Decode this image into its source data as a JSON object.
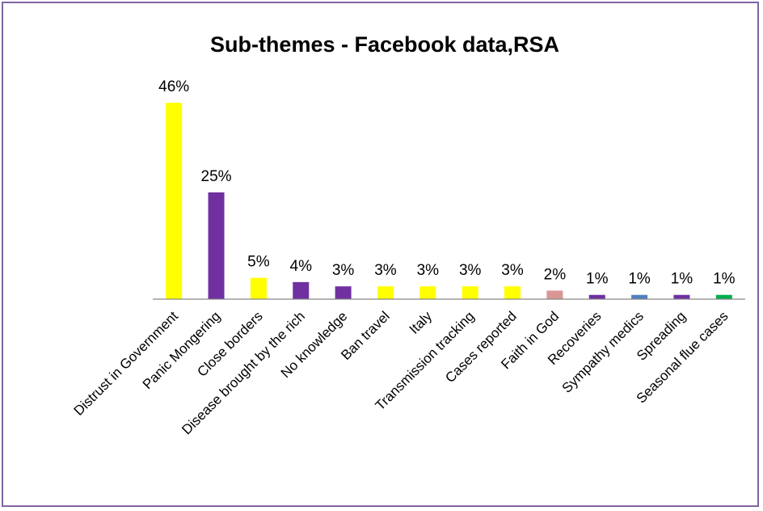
{
  "chart_data": {
    "type": "bar",
    "title": "Sub-themes - Facebook data,RSA",
    "xlabel": "",
    "ylabel": "",
    "ylim": [
      0,
      46
    ],
    "grid": false,
    "legend": "none",
    "categories": [
      "Distrust in Government",
      "Panic Mongering",
      "Close borders",
      "Disease brought by the rich",
      "No knowledge",
      "Ban travel",
      "Italy",
      "Transmission tracking",
      "Cases reported",
      "Faith in God",
      "Recoveries",
      "Sympathy medics",
      "Spreading",
      "Seasonal flue cases"
    ],
    "values": [
      46,
      25,
      5,
      4,
      3,
      3,
      3,
      3,
      3,
      2,
      1,
      1,
      1,
      1
    ],
    "data_labels": [
      "46%",
      "25%",
      "5%",
      "4%",
      "3%",
      "3%",
      "3%",
      "3%",
      "3%",
      "2%",
      "1%",
      "1%",
      "1%",
      "1%"
    ],
    "colors": [
      "#ffff00",
      "#7030a0",
      "#ffff00",
      "#7030a0",
      "#7030a0",
      "#ffff00",
      "#ffff00",
      "#ffff00",
      "#ffff00",
      "#d99694",
      "#7030a0",
      "#4f81bd",
      "#7030a0",
      "#00b050"
    ]
  }
}
